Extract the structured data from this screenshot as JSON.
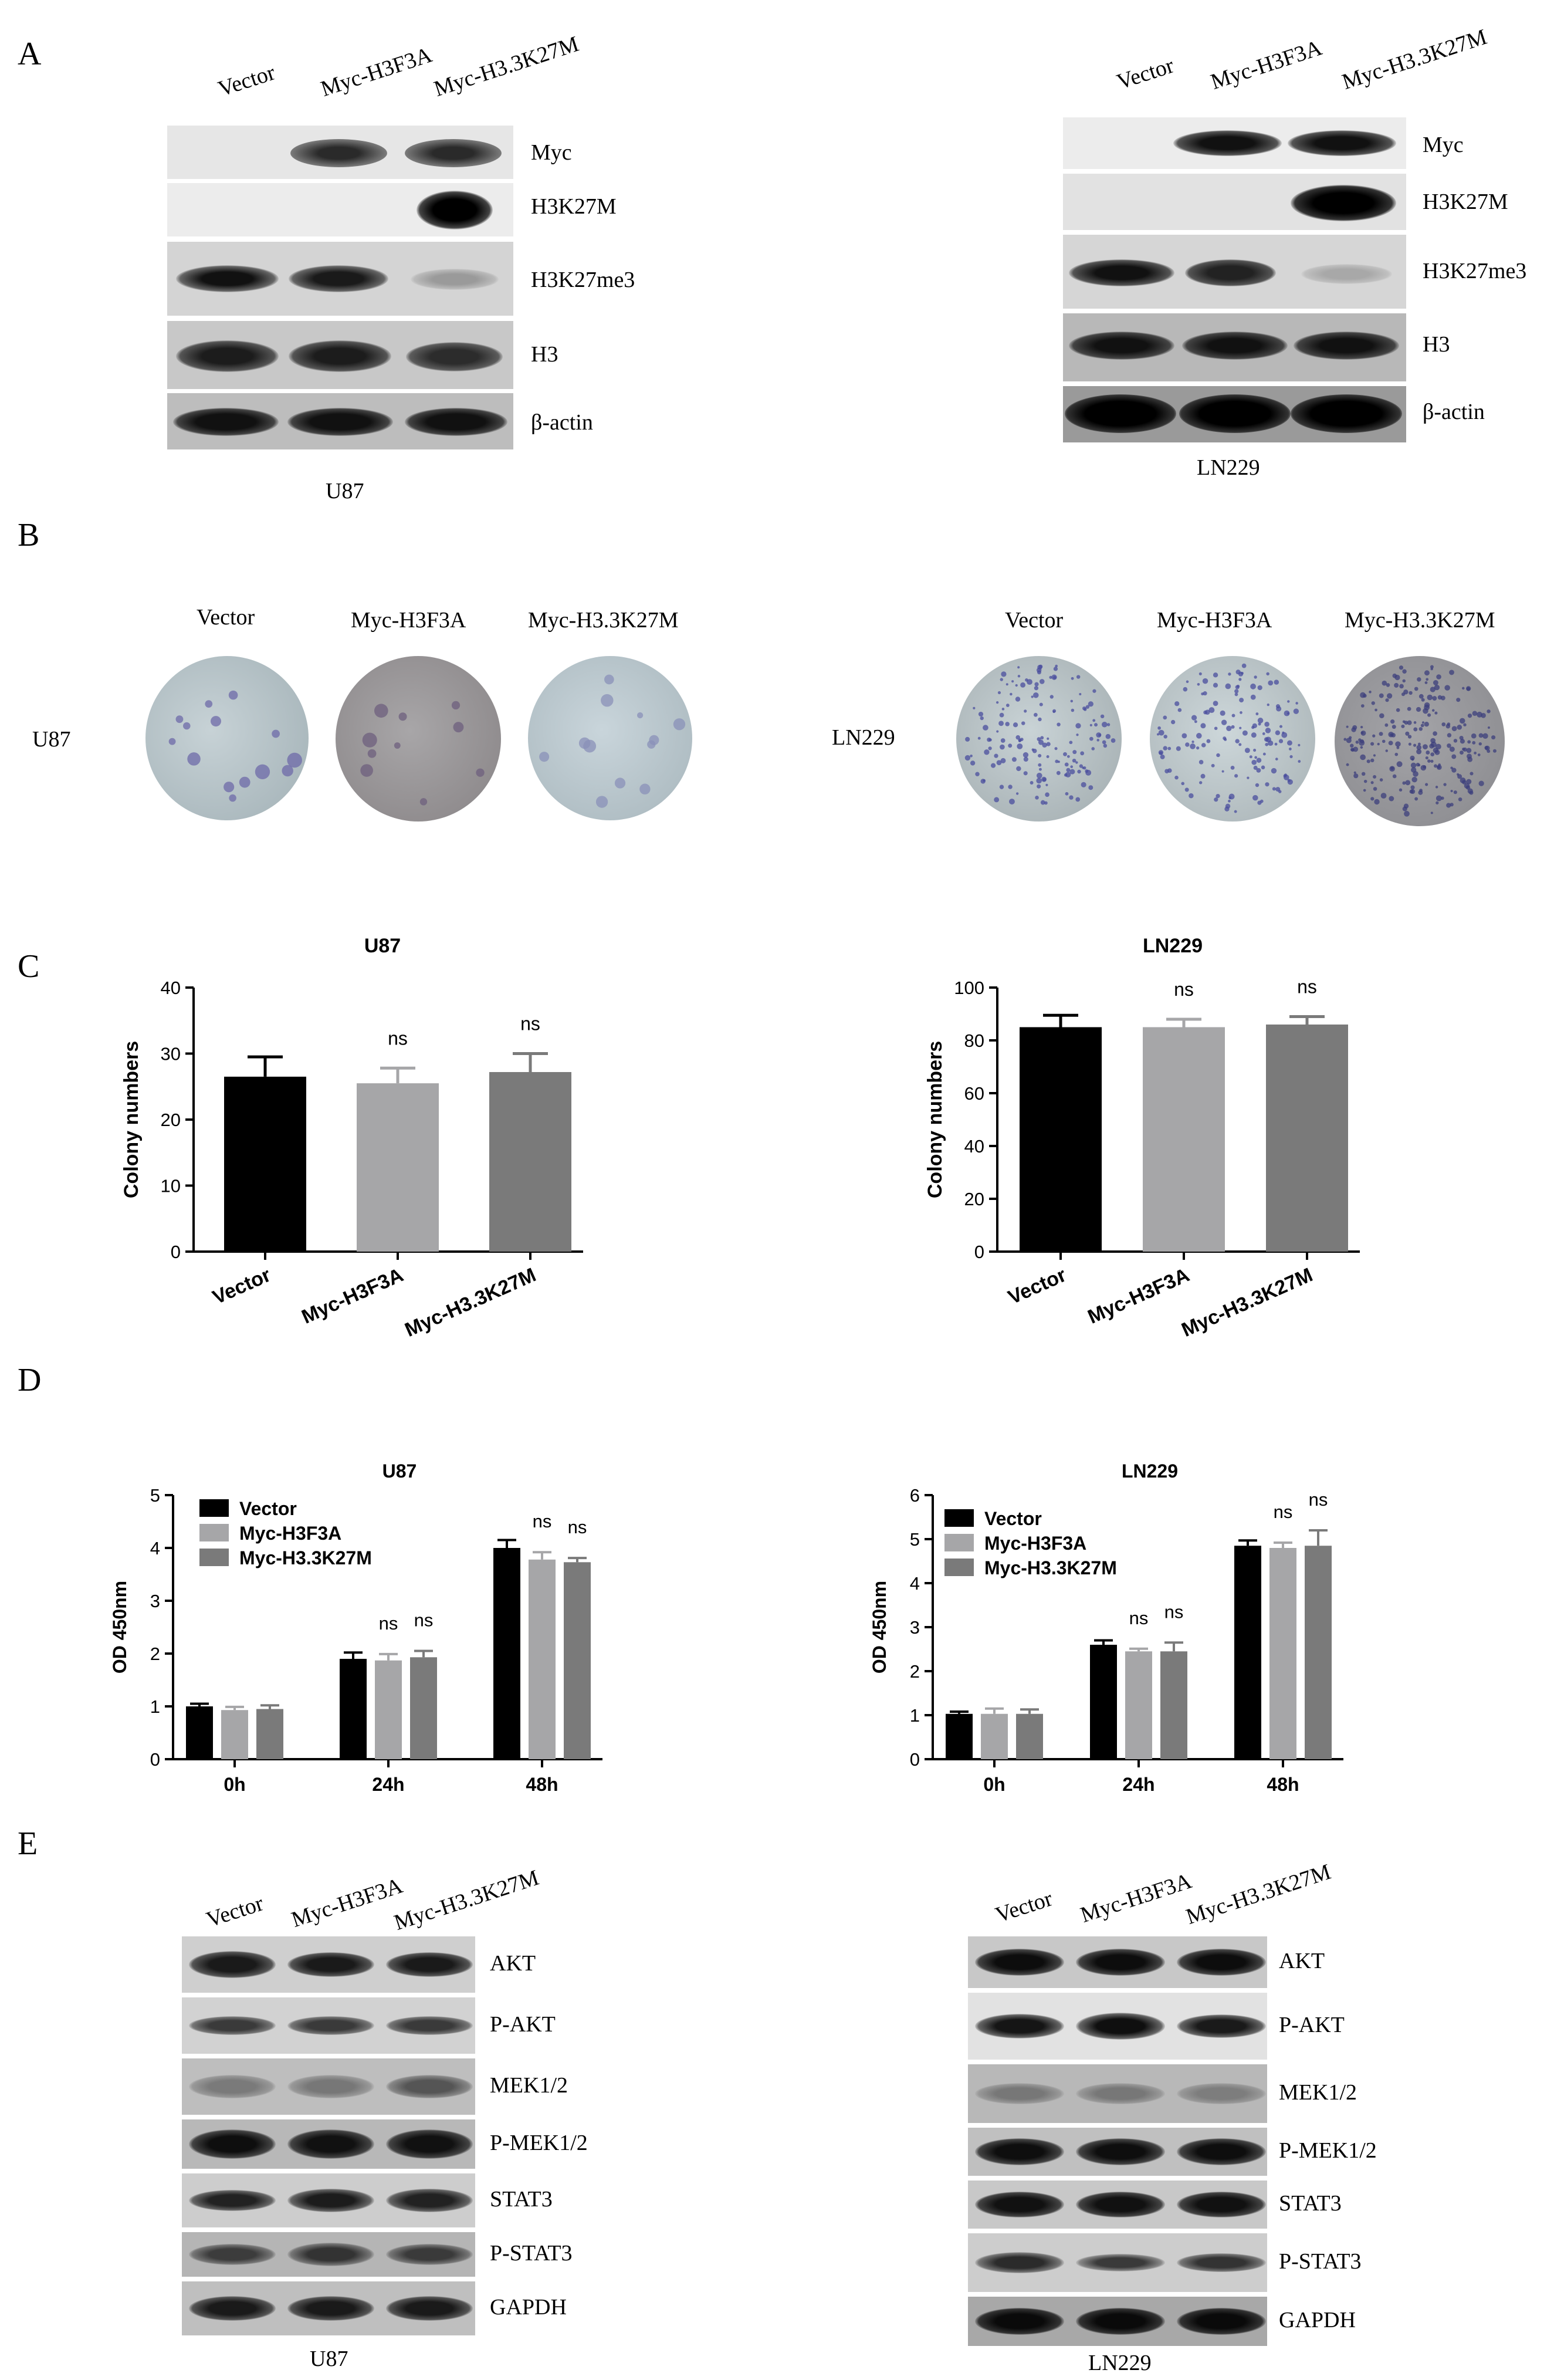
{
  "panels": {
    "A": "A",
    "B": "B",
    "C": "C",
    "D": "D",
    "E": "E"
  },
  "panel_a": {
    "lanes": [
      "Vector",
      "Myc-H3F3A",
      "Myc-H3.3K27M"
    ],
    "rows": [
      "Myc",
      "H3K27M",
      "H3K27me3",
      "H3",
      "β-actin"
    ],
    "left_cell": "U87",
    "right_cell": "LN229"
  },
  "panel_b": {
    "lanes": [
      "Vector",
      "Myc-H3F3A",
      "Myc-H3.3K27M"
    ],
    "left_cell": "U87",
    "right_cell": "LN229"
  },
  "panel_e": {
    "lanes": [
      "Vector",
      "Myc-H3F3A",
      "Myc-H3.3K27M"
    ],
    "rows": [
      "AKT",
      "P-AKT",
      "MEK1/2",
      "P-MEK1/2",
      "STAT3",
      "P-STAT3",
      "GAPDH"
    ],
    "left_cell": "U87",
    "right_cell": "LN229"
  },
  "colors": {
    "vector": "#000000",
    "h3f3a": "#a6a6a8",
    "k27m": "#7a7a7a",
    "blot_bg": "#d8d8d8"
  },
  "chart_data": [
    {
      "type": "bar",
      "title": "U87",
      "ylabel": "Colony numbers",
      "ylim": [
        0,
        40
      ],
      "yticks": [
        "0",
        "10",
        "20",
        "30",
        "40"
      ],
      "categories": [
        "Vector",
        "Myc-H3F3A",
        "Myc-H3.3K27M"
      ],
      "values": [
        26.5,
        25.5,
        27.2
      ],
      "errors": [
        3.0,
        2.3,
        2.8
      ],
      "annotations": [
        "",
        "ns",
        "ns"
      ]
    },
    {
      "type": "bar",
      "title": "LN229",
      "ylabel": "Colony numbers",
      "ylim": [
        0,
        100
      ],
      "yticks": [
        "0",
        "20",
        "40",
        "60",
        "80",
        "100"
      ],
      "categories": [
        "Vector",
        "Myc-H3F3A",
        "Myc-H3.3K27M"
      ],
      "values": [
        85,
        85,
        86
      ],
      "errors": [
        4.5,
        3,
        3
      ],
      "annotations": [
        "",
        "ns",
        "ns"
      ]
    },
    {
      "type": "bar",
      "title": "U87",
      "ylabel": "OD 450nm",
      "ylim": [
        0,
        5
      ],
      "yticks": [
        "0",
        "1",
        "2",
        "3",
        "4",
        "5"
      ],
      "categories": [
        "0h",
        "24h",
        "48h"
      ],
      "series": [
        {
          "name": "Vector",
          "values": [
            1.0,
            1.9,
            4.0
          ],
          "errors": [
            0.05,
            0.12,
            0.15
          ]
        },
        {
          "name": "Myc-H3F3A",
          "values": [
            0.93,
            1.87,
            3.78
          ],
          "errors": [
            0.06,
            0.12,
            0.14
          ]
        },
        {
          "name": "Myc-H3.3K27M",
          "values": [
            0.95,
            1.93,
            3.73
          ],
          "errors": [
            0.07,
            0.12,
            0.08
          ]
        }
      ],
      "annotations": [
        [
          "",
          "",
          ""
        ],
        [
          "",
          "ns",
          "ns"
        ],
        [
          "",
          "ns",
          "ns"
        ]
      ]
    },
    {
      "type": "bar",
      "title": "LN229",
      "ylabel": "OD 450nm",
      "ylim": [
        0,
        6
      ],
      "yticks": [
        "0",
        "1",
        "2",
        "3",
        "4",
        "5",
        "6"
      ],
      "categories": [
        "0h",
        "24h",
        "48h"
      ],
      "series": [
        {
          "name": "Vector",
          "values": [
            1.03,
            2.6,
            4.85
          ],
          "errors": [
            0.05,
            0.1,
            0.12
          ]
        },
        {
          "name": "Myc-H3F3A",
          "values": [
            1.03,
            2.45,
            4.8
          ],
          "errors": [
            0.12,
            0.06,
            0.12
          ]
        },
        {
          "name": "Myc-H3.3K27M",
          "values": [
            1.03,
            2.45,
            4.85
          ],
          "errors": [
            0.1,
            0.2,
            0.35
          ]
        }
      ],
      "annotations": [
        [
          "",
          "",
          ""
        ],
        [
          "",
          "ns",
          "ns"
        ],
        [
          "",
          "ns",
          "ns"
        ]
      ]
    }
  ]
}
